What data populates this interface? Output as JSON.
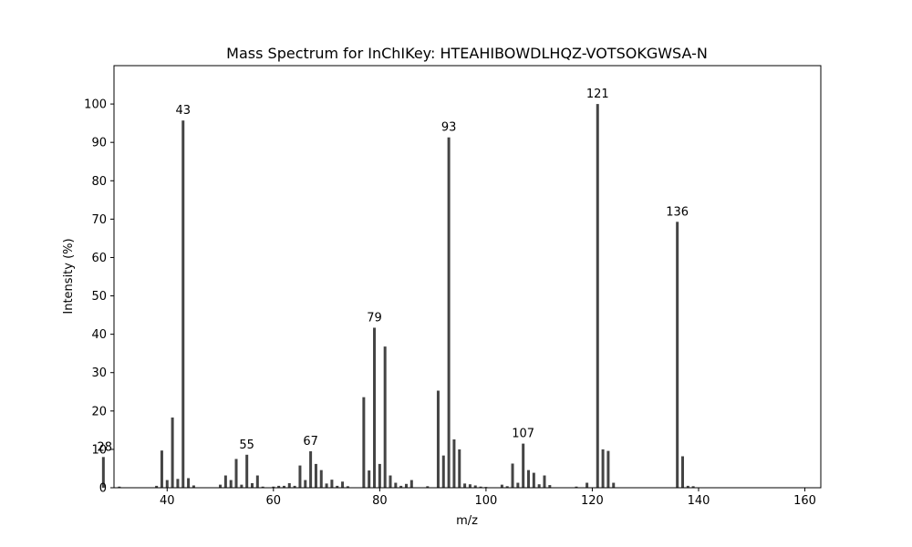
{
  "chart_data": {
    "type": "bar",
    "title": "Mass Spectrum for InChIKey: HTEAHIBOWDLHQZ-VOTSOKGWSA-N",
    "xlabel": "m/z",
    "ylabel": "Intensity (%)",
    "xlim": [
      30,
      163
    ],
    "ylim": [
      0,
      110
    ],
    "xticks": [
      40,
      60,
      80,
      100,
      120,
      140,
      160
    ],
    "yticks": [
      0,
      10,
      20,
      30,
      40,
      50,
      60,
      70,
      80,
      90,
      100
    ],
    "grid": false,
    "bar_color": "#444444",
    "series": [
      {
        "x": [
          28,
          31,
          38,
          39,
          40,
          41,
          42,
          43,
          44,
          45,
          50,
          51,
          52,
          53,
          54,
          55,
          56,
          57,
          58,
          60,
          61,
          62,
          63,
          64,
          65,
          66,
          67,
          68,
          69,
          70,
          71,
          72,
          73,
          74,
          77,
          78,
          79,
          80,
          81,
          82,
          83,
          84,
          85,
          86,
          89,
          91,
          92,
          93,
          94,
          95,
          96,
          97,
          98,
          99,
          100,
          103,
          104,
          105,
          106,
          107,
          108,
          109,
          110,
          111,
          112,
          117,
          119,
          121,
          122,
          123,
          124,
          136,
          137,
          138,
          139
        ],
        "values": [
          8,
          0.3,
          0.5,
          9.7,
          2,
          18.3,
          2.3,
          95.7,
          2.5,
          0.6,
          0.8,
          3.2,
          2,
          7.5,
          0.8,
          8.6,
          1.2,
          3.2,
          0.3,
          0.3,
          0.5,
          0.5,
          1.2,
          0.5,
          5.8,
          2,
          9.5,
          6.2,
          4.6,
          1.1,
          2.1,
          0.5,
          1.6,
          0.4,
          23.6,
          4.5,
          41.7,
          6.2,
          36.8,
          3.2,
          1.3,
          0.5,
          1,
          2,
          0.4,
          25.3,
          8.4,
          91.3,
          12.6,
          10,
          1.1,
          0.9,
          0.6,
          0.3,
          0.2,
          0.8,
          0.4,
          6.3,
          1.3,
          11.5,
          4.6,
          3.9,
          0.9,
          3.2,
          0.7,
          0.3,
          1.3,
          100,
          10,
          9.6,
          1.3,
          69.3,
          8.2,
          0.5,
          0.4
        ]
      }
    ],
    "peak_labels": [
      {
        "x": 28,
        "y": 8,
        "text": "28"
      },
      {
        "x": 43,
        "y": 95.7,
        "text": "43"
      },
      {
        "x": 55,
        "y": 8.6,
        "text": "55"
      },
      {
        "x": 67,
        "y": 9.5,
        "text": "67"
      },
      {
        "x": 79,
        "y": 41.7,
        "text": "79"
      },
      {
        "x": 93,
        "y": 91.3,
        "text": "93"
      },
      {
        "x": 107,
        "y": 11.5,
        "text": "107"
      },
      {
        "x": 121,
        "y": 100,
        "text": "121"
      },
      {
        "x": 136,
        "y": 69.3,
        "text": "136"
      }
    ]
  }
}
